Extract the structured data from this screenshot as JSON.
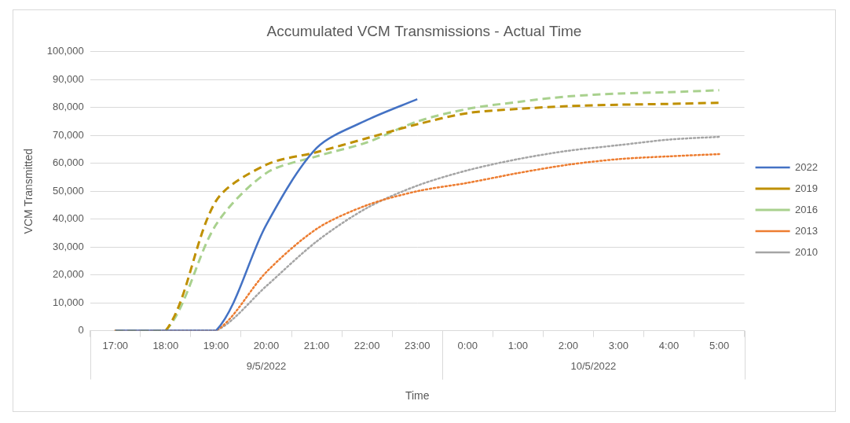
{
  "chart_data": {
    "type": "line",
    "title": "Accumulated VCM Transmissions - Actual Time",
    "x_label": "Time",
    "y_label": "VCM Transmitted",
    "categories": [
      "17:00",
      "18:00",
      "19:00",
      "20:00",
      "21:00",
      "22:00",
      "23:00",
      "0:00",
      "1:00",
      "2:00",
      "3:00",
      "4:00",
      "5:00"
    ],
    "x_groups": [
      {
        "label": "9/5/2022",
        "from": "17:00",
        "to": "23:00"
      },
      {
        "label": "10/5/2022",
        "from": "0:00",
        "to": "5:00"
      }
    ],
    "series": [
      {
        "name": "2022",
        "color": "#4472c4",
        "line_style": "solid",
        "values": [
          0,
          0,
          0,
          38000,
          65500,
          75500,
          83000,
          null,
          null,
          null,
          null,
          null,
          null
        ]
      },
      {
        "name": "2019",
        "color": "#bf9000",
        "line_style": "dashed",
        "values": [
          0,
          0,
          46500,
          59500,
          64000,
          69000,
          74000,
          78000,
          79500,
          80500,
          81000,
          81300,
          81700
        ]
      },
      {
        "name": "2016",
        "color": "#a9d18e",
        "line_style": "dashed",
        "values": [
          0,
          0,
          38000,
          56500,
          62500,
          67500,
          75000,
          79500,
          82000,
          84000,
          85000,
          85500,
          86200
        ]
      },
      {
        "name": "2013",
        "color": "#ed7d31",
        "line_style": "dotted",
        "values": [
          0,
          0,
          0,
          21000,
          36500,
          45000,
          50000,
          53000,
          56500,
          59500,
          61500,
          62500,
          63300
        ]
      },
      {
        "name": "2010",
        "color": "#a5a5a5",
        "line_style": "dotted",
        "values": [
          0,
          0,
          0,
          16000,
          32000,
          44000,
          52000,
          57500,
          61500,
          64500,
          66500,
          68500,
          69500
        ]
      }
    ],
    "ylim": [
      0,
      100000
    ],
    "yticks": [
      0,
      {
        "value": 10000,
        "label": "10,000"
      },
      {
        "value": 20000,
        "label": "20,000"
      },
      {
        "value": 30000,
        "label": "30,000"
      },
      {
        "value": 40000,
        "label": "40,000"
      },
      {
        "value": 50000,
        "label": "50,000"
      },
      {
        "value": 60000,
        "label": "60,000"
      },
      {
        "value": 70000,
        "label": "70,000"
      },
      {
        "value": 80000,
        "label": "80,000"
      },
      {
        "value": 90000,
        "label": "90,000"
      },
      {
        "value": 100000,
        "label": "100,000"
      }
    ],
    "grid": true,
    "legend": "right"
  }
}
